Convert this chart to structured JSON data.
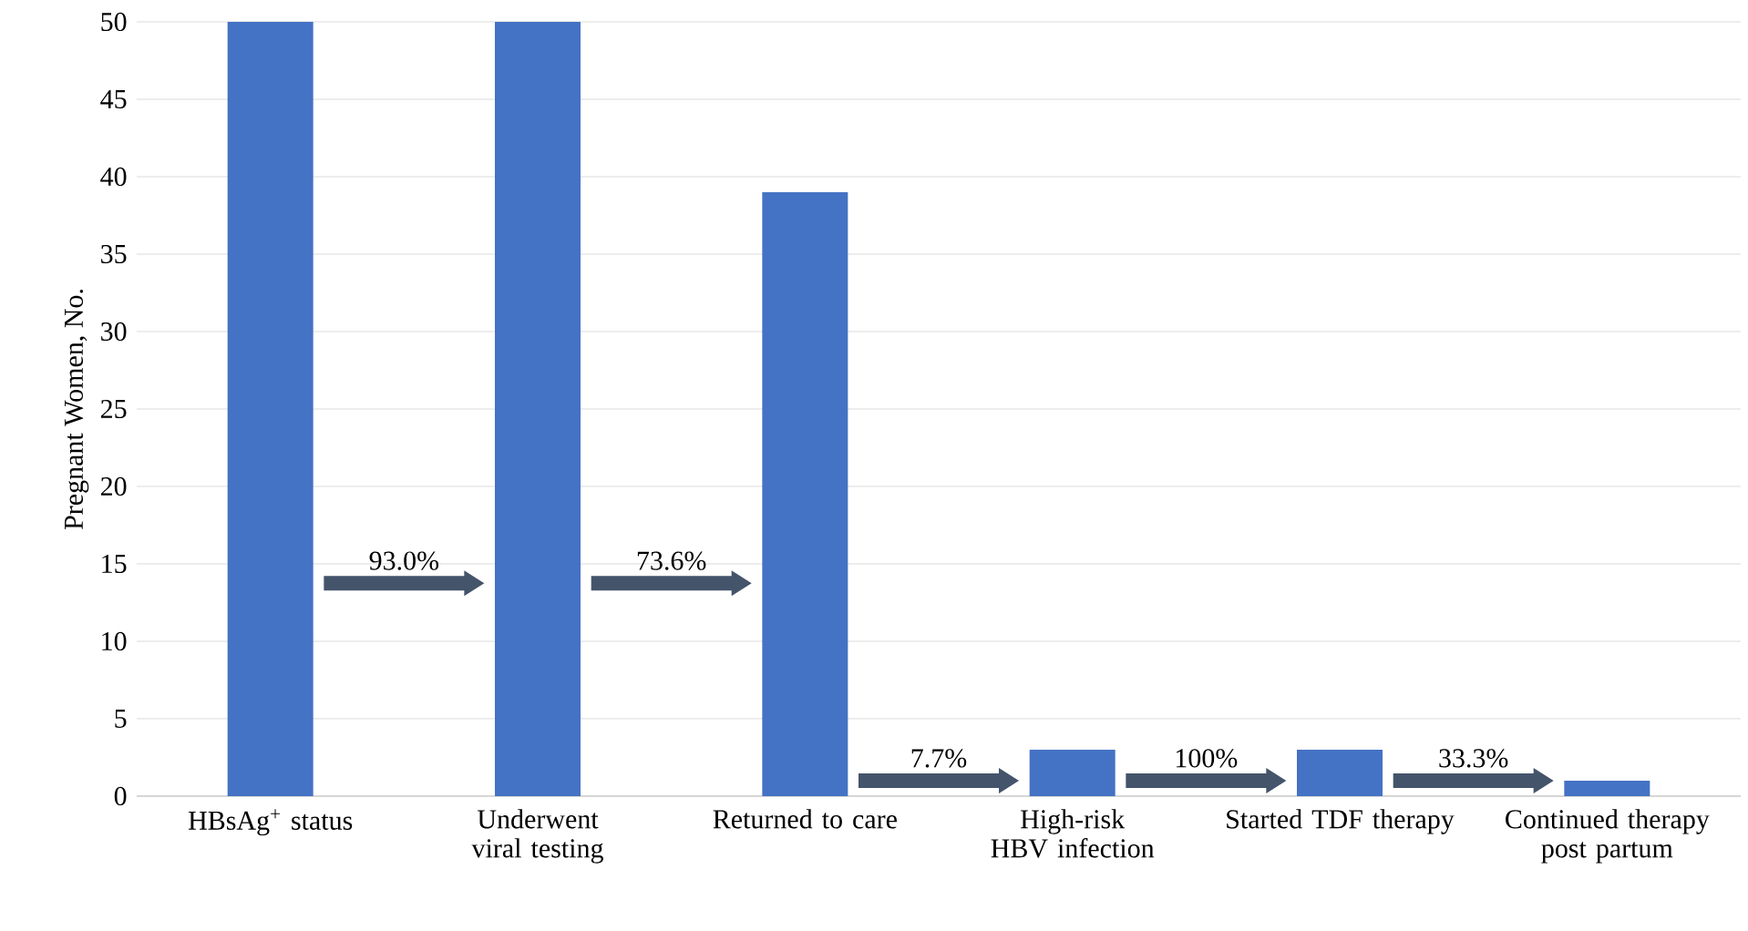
{
  "chart_data": {
    "type": "bar",
    "ylabel": "Pregnant Women, No.",
    "categories": [
      "HBsAg$^{+}$ status",
      "Underwent viral testing",
      "Returned to care",
      "High-risk HBV infection",
      "Started TDF therapy",
      "Continued therapy post partum"
    ],
    "values": [
      50,
      50,
      39,
      3,
      3,
      1
    ],
    "color": "#4472c4",
    "ylim": [
      0,
      50
    ],
    "yticks": [
      0,
      5,
      10,
      15,
      20,
      25,
      30,
      35,
      40,
      45,
      50
    ],
    "grid": "y",
    "annotations": [
      "93.0%",
      "73.6%",
      "7.7%",
      "100%",
      "33.3%"
    ]
  }
}
